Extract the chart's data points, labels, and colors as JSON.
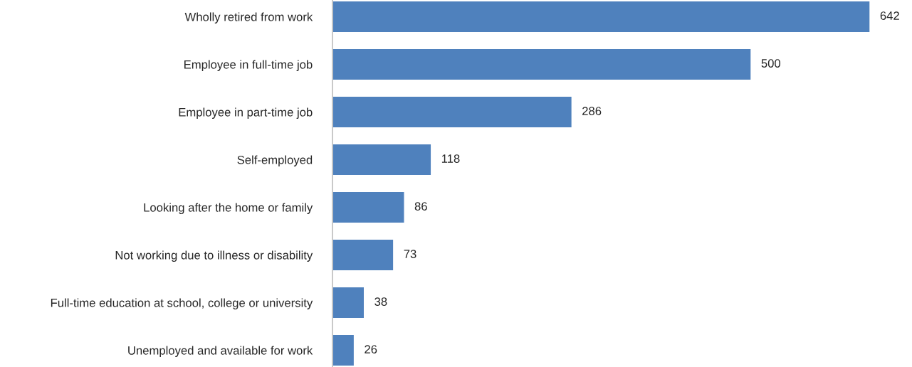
{
  "chart_data": {
    "type": "bar",
    "orientation": "horizontal",
    "categories": [
      "Wholly retired from work",
      "Employee in full-time job",
      "Employee in part-time job",
      "Self-employed",
      "Looking after the home or family",
      "Not working due to illness or disability",
      "Full-time education at school, college or university",
      "Unemployed and available for work"
    ],
    "values": [
      642,
      500,
      286,
      118,
      86,
      73,
      38,
      26
    ],
    "color": "#4f81bd",
    "data_labels": true,
    "grid": false,
    "legend": false
  }
}
